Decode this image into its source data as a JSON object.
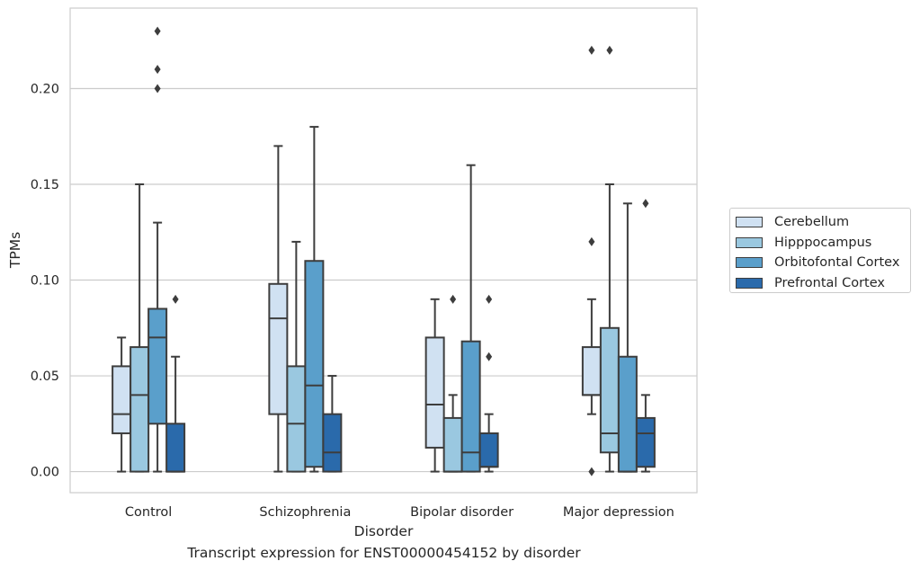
{
  "chart_data": {
    "type": "boxplot",
    "xlabel": "Disorder",
    "ylabel": "TPMs",
    "caption": "Transcript expression for ENST00000454152 by disorder",
    "ylim": [
      -0.011,
      0.242
    ],
    "yticks": [
      0.0,
      0.05,
      0.1,
      0.15,
      0.2
    ],
    "ytick_labels": [
      "0.00",
      "0.05",
      "0.10",
      "0.15",
      "0.20"
    ],
    "grid": "horizontal",
    "legend_position": "right",
    "categories": [
      "Control",
      "Schizophrenia",
      "Bipolar disorder",
      "Major depression"
    ],
    "series": [
      {
        "name": "Cerebellum",
        "color": "#d0e1f2",
        "boxes": [
          {
            "whislo": 0.0,
            "q1": 0.02,
            "med": 0.03,
            "q3": 0.055,
            "whishi": 0.07,
            "fliers": []
          },
          {
            "whislo": 0.0,
            "q1": 0.03,
            "med": 0.08,
            "q3": 0.098,
            "whishi": 0.17,
            "fliers": []
          },
          {
            "whislo": 0.0,
            "q1": 0.0125,
            "med": 0.035,
            "q3": 0.07,
            "whishi": 0.09,
            "fliers": []
          },
          {
            "whislo": 0.03,
            "q1": 0.04,
            "med": 0.04,
            "q3": 0.065,
            "whishi": 0.09,
            "fliers": [
              0.0,
              0.12,
              0.22
            ]
          }
        ]
      },
      {
        "name": "Hipppocampus",
        "color": "#9ac8e0",
        "boxes": [
          {
            "whislo": 0.0,
            "q1": 0.0,
            "med": 0.04,
            "q3": 0.065,
            "whishi": 0.15,
            "fliers": []
          },
          {
            "whislo": 0.0,
            "q1": 0.0,
            "med": 0.025,
            "q3": 0.055,
            "whishi": 0.12,
            "fliers": []
          },
          {
            "whislo": 0.0,
            "q1": 0.0,
            "med": 0.0,
            "q3": 0.028,
            "whishi": 0.04,
            "fliers": [
              0.09
            ]
          },
          {
            "whislo": 0.0,
            "q1": 0.01,
            "med": 0.02,
            "q3": 0.075,
            "whishi": 0.15,
            "fliers": [
              0.22
            ]
          }
        ]
      },
      {
        "name": "Orbitofontal Cortex",
        "color": "#5a9fcb",
        "boxes": [
          {
            "whislo": 0.0,
            "q1": 0.025,
            "med": 0.07,
            "q3": 0.085,
            "whishi": 0.13,
            "fliers": [
              0.2,
              0.21,
              0.23
            ]
          },
          {
            "whislo": 0.0,
            "q1": 0.0025,
            "med": 0.045,
            "q3": 0.11,
            "whishi": 0.18,
            "fliers": []
          },
          {
            "whislo": 0.0,
            "q1": 0.0,
            "med": 0.01,
            "q3": 0.068,
            "whishi": 0.16,
            "fliers": []
          },
          {
            "whislo": 0.0,
            "q1": 0.0,
            "med": 0.0,
            "q3": 0.06,
            "whishi": 0.14,
            "fliers": []
          }
        ]
      },
      {
        "name": "Prefrontal Cortex",
        "color": "#2a6aab",
        "boxes": [
          {
            "whislo": 0.0,
            "q1": 0.0,
            "med": 0.0,
            "q3": 0.025,
            "whishi": 0.06,
            "fliers": [
              0.09
            ]
          },
          {
            "whislo": 0.0,
            "q1": 0.0,
            "med": 0.01,
            "q3": 0.03,
            "whishi": 0.05,
            "fliers": []
          },
          {
            "whislo": 0.0,
            "q1": 0.0025,
            "med": 0.0025,
            "q3": 0.02,
            "whishi": 0.03,
            "fliers": [
              0.06,
              0.09
            ]
          },
          {
            "whislo": 0.0,
            "q1": 0.0025,
            "med": 0.02,
            "q3": 0.028,
            "whishi": 0.04,
            "fliers": [
              0.14
            ]
          }
        ]
      }
    ]
  }
}
